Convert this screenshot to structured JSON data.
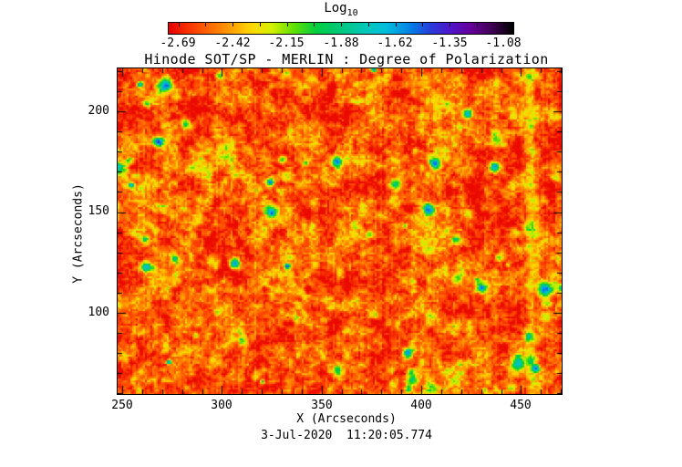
{
  "page": {
    "background": "#ffffff"
  },
  "chart_data": {
    "type": "heatmap",
    "title": "Hinode SOT/SP - MERLIN : Degree of Polarization",
    "xlabel": "X (Arcseconds)",
    "ylabel": "Y (Arcseconds)",
    "timestamp": "3-Jul-2020  11:20:05.774",
    "x_range": [
      247.7,
      470.4
    ],
    "x_ticks": [
      250,
      300,
      350,
      400,
      450
    ],
    "x_tick_labels": [
      "250",
      "300",
      "350",
      "400",
      "450"
    ],
    "x_minor_step": 10,
    "y_range": [
      59.7,
      221.3
    ],
    "y_ticks": [
      100,
      150,
      200
    ],
    "y_tick_labels": [
      "100",
      "150",
      "200"
    ],
    "y_minor_step": 10,
    "grid": false,
    "colorbar": {
      "title_text": "Log",
      "title_sub": "10",
      "orientation": "horizontal",
      "position": "top",
      "range": [
        -2.69,
        -1.08
      ],
      "tick_values": [
        -2.69,
        -2.42,
        -2.15,
        -1.88,
        -1.62,
        -1.35,
        -1.08
      ],
      "tick_labels": [
        "-2.69",
        "-2.42",
        "-2.15",
        "-1.88",
        "-1.62",
        "-1.35",
        "-1.08"
      ],
      "minor_tick_count": 13,
      "palette_stops": [
        [
          0.0,
          "#e80000"
        ],
        [
          0.08,
          "#ff4600"
        ],
        [
          0.16,
          "#ff8c00"
        ],
        [
          0.24,
          "#ffd700"
        ],
        [
          0.3,
          "#d2f000"
        ],
        [
          0.36,
          "#64e100"
        ],
        [
          0.43,
          "#00cd41"
        ],
        [
          0.5,
          "#00c87d"
        ],
        [
          0.57,
          "#00c8b9"
        ],
        [
          0.63,
          "#00bedc"
        ],
        [
          0.7,
          "#0082e6"
        ],
        [
          0.76,
          "#283cdc"
        ],
        [
          0.82,
          "#5014c8"
        ],
        [
          0.88,
          "#640096"
        ],
        [
          0.94,
          "#3c0050"
        ],
        [
          1.0,
          "#000000"
        ]
      ]
    },
    "field_summary": {
      "dominant_log10_range": [
        -2.65,
        -2.2
      ],
      "artifact_streak_x_arcsec": 455,
      "notes": "Granular red/orange field (log10 DOP ~ -2.6 to -2.3) with yellow inter-granule network, sparse green patches (~ -2.0), rare cyan/blue cores (~ -1.5), and a brighter vertical artifact streak near X = 455 arcsec"
    }
  }
}
